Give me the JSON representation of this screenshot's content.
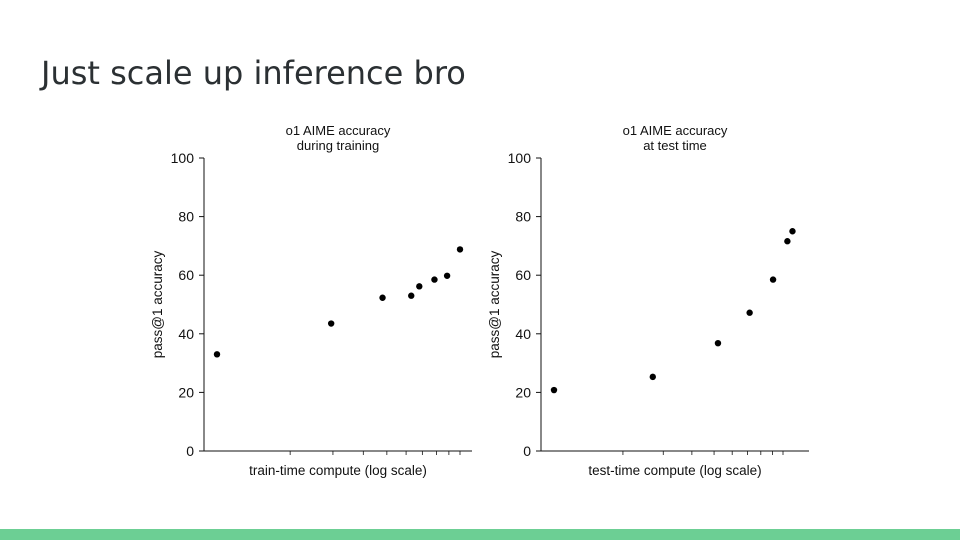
{
  "slide": {
    "title": "Just scale up inference bro",
    "footer_color": "#6ccf94",
    "text_color": "#2b3033"
  },
  "chart_data": [
    {
      "type": "scatter",
      "title": "o1 AIME accuracy\nduring training",
      "xlabel": "train-time compute (log scale)",
      "ylabel": "pass@1 accuracy",
      "x_scale": "log",
      "x_tick_labels": "none",
      "ylim": [
        0,
        100
      ],
      "yticks": [
        0,
        20,
        40,
        60,
        80,
        100
      ],
      "grid": false,
      "marker_color": "#000000",
      "series": [
        {
          "x": [
            1,
            2.95,
            4.8,
            6.3,
            6.8,
            7.85,
            8.85,
            10
          ],
          "y": [
            33,
            43.5,
            52.3,
            53,
            56.2,
            58.5,
            59.8,
            68.8
          ]
        }
      ]
    },
    {
      "type": "scatter",
      "title": "o1 AIME accuracy\nat test time",
      "xlabel": "test-time compute (log scale)",
      "ylabel": "pass@1 accuracy",
      "x_scale": "log",
      "x_tick_labels": "none",
      "ylim": [
        0,
        100
      ],
      "yticks": [
        0,
        20,
        40,
        60,
        80,
        100
      ],
      "grid": false,
      "marker_color": "#000000",
      "series": [
        {
          "x": [
            1,
            2.7,
            5.2,
            7.15,
            9.05,
            10.45,
            11
          ],
          "y": [
            20.8,
            25.3,
            36.8,
            47.2,
            58.5,
            71.6,
            75
          ]
        }
      ]
    }
  ]
}
